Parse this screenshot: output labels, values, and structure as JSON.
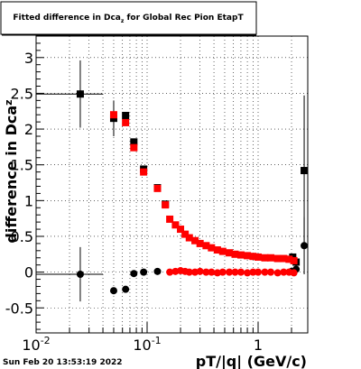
{
  "chart_data": {
    "type": "scatter",
    "title": "Fitted difference in Dca",
    "title_sub": "z",
    "title_tail": " for Global Rec Pion EtapT",
    "xlabel": "pT/|q| (GeV/c)",
    "ylabel": "difference in Dca",
    "ylabel_sub": "z",
    "footer": "Sun Feb 20 13:53:19 2022",
    "xscale": "log",
    "xlim": [
      0.01,
      2.8
    ],
    "ylim": [
      -0.85,
      3.3
    ],
    "grid": true,
    "x_tick_labels": [
      {
        "value": 0.01,
        "base": "10",
        "exp": "-2"
      },
      {
        "value": 0.1,
        "base": "10",
        "exp": "-1"
      },
      {
        "value": 1,
        "base": "1",
        "exp": ""
      }
    ],
    "y_ticks": [
      -0.5,
      0,
      0.5,
      1,
      1.5,
      2,
      2.5,
      3
    ],
    "y_tick_labels": [
      "-0.5",
      "0",
      "0.5",
      "1",
      "1.5",
      "2",
      "2.5",
      "3"
    ],
    "series": [
      {
        "color": "#000000",
        "marker": "square",
        "points": [
          {
            "x": 0.025,
            "y": 2.49,
            "xerr": [
              0.01,
              0.04
            ],
            "yerr": 0.47
          },
          {
            "x": 0.05,
            "y": 2.15,
            "yerr": 0.25
          },
          {
            "x": 0.064,
            "y": 2.19
          },
          {
            "x": 0.076,
            "y": 1.82
          },
          {
            "x": 0.093,
            "y": 1.44
          },
          {
            "x": 0.124,
            "y": 1.18
          },
          {
            "x": 0.146,
            "y": 0.95
          },
          {
            "x": 2.05,
            "y": 0.21
          },
          {
            "x": 2.2,
            "y": 0.14
          },
          {
            "x": 2.6,
            "y": 1.42,
            "yerr": 1.05
          }
        ]
      },
      {
        "color": "#ff0000",
        "marker": "square",
        "points": [
          {
            "x": 0.05,
            "y": 2.2
          },
          {
            "x": 0.064,
            "y": 2.09
          },
          {
            "x": 0.076,
            "y": 1.74
          },
          {
            "x": 0.093,
            "y": 1.4
          },
          {
            "x": 0.124,
            "y": 1.17
          },
          {
            "x": 0.146,
            "y": 0.94
          },
          {
            "x": 0.16,
            "y": 0.74
          },
          {
            "x": 0.18,
            "y": 0.66
          },
          {
            "x": 0.2,
            "y": 0.6
          },
          {
            "x": 0.22,
            "y": 0.53
          },
          {
            "x": 0.24,
            "y": 0.48
          },
          {
            "x": 0.27,
            "y": 0.44
          },
          {
            "x": 0.3,
            "y": 0.4
          },
          {
            "x": 0.34,
            "y": 0.37
          },
          {
            "x": 0.38,
            "y": 0.34
          },
          {
            "x": 0.43,
            "y": 0.31
          },
          {
            "x": 0.48,
            "y": 0.29
          },
          {
            "x": 0.55,
            "y": 0.27
          },
          {
            "x": 0.62,
            "y": 0.25
          },
          {
            "x": 0.7,
            "y": 0.24
          },
          {
            "x": 0.8,
            "y": 0.23
          },
          {
            "x": 0.9,
            "y": 0.22
          },
          {
            "x": 1.0,
            "y": 0.21
          },
          {
            "x": 1.15,
            "y": 0.2
          },
          {
            "x": 1.3,
            "y": 0.2
          },
          {
            "x": 1.5,
            "y": 0.19
          },
          {
            "x": 1.7,
            "y": 0.19
          },
          {
            "x": 1.9,
            "y": 0.18
          },
          {
            "x": 2.1,
            "y": 0.16
          }
        ]
      },
      {
        "color": "#000000",
        "marker": "circle",
        "points": [
          {
            "x": 0.025,
            "y": -0.03,
            "xerr": [
              0.01,
              0.04
            ],
            "yerr": 0.38
          },
          {
            "x": 0.05,
            "y": -0.26
          },
          {
            "x": 0.064,
            "y": -0.24
          },
          {
            "x": 0.076,
            "y": -0.02
          },
          {
            "x": 0.093,
            "y": 0.0
          },
          {
            "x": 0.124,
            "y": 0.01
          },
          {
            "x": 2.0,
            "y": 0.01
          },
          {
            "x": 2.2,
            "y": 0.04
          },
          {
            "x": 2.6,
            "y": 0.37,
            "yerr": 0.4
          }
        ]
      },
      {
        "color": "#ff0000",
        "marker": "circle",
        "points": [
          {
            "x": 0.16,
            "y": 0.0
          },
          {
            "x": 0.18,
            "y": 0.01
          },
          {
            "x": 0.2,
            "y": 0.02
          },
          {
            "x": 0.22,
            "y": 0.01
          },
          {
            "x": 0.24,
            "y": 0.0
          },
          {
            "x": 0.27,
            "y": 0.0
          },
          {
            "x": 0.3,
            "y": 0.01
          },
          {
            "x": 0.34,
            "y": 0.0
          },
          {
            "x": 0.38,
            "y": 0.0
          },
          {
            "x": 0.43,
            "y": -0.01
          },
          {
            "x": 0.48,
            "y": 0.0
          },
          {
            "x": 0.55,
            "y": 0.0
          },
          {
            "x": 0.62,
            "y": 0.0
          },
          {
            "x": 0.7,
            "y": 0.0
          },
          {
            "x": 0.8,
            "y": -0.01
          },
          {
            "x": 0.9,
            "y": 0.0
          },
          {
            "x": 1.0,
            "y": 0.0
          },
          {
            "x": 1.15,
            "y": 0.0
          },
          {
            "x": 1.3,
            "y": 0.0
          },
          {
            "x": 1.5,
            "y": -0.01
          },
          {
            "x": 1.7,
            "y": 0.0
          },
          {
            "x": 1.9,
            "y": 0.0
          },
          {
            "x": 2.1,
            "y": -0.01
          }
        ]
      }
    ]
  }
}
